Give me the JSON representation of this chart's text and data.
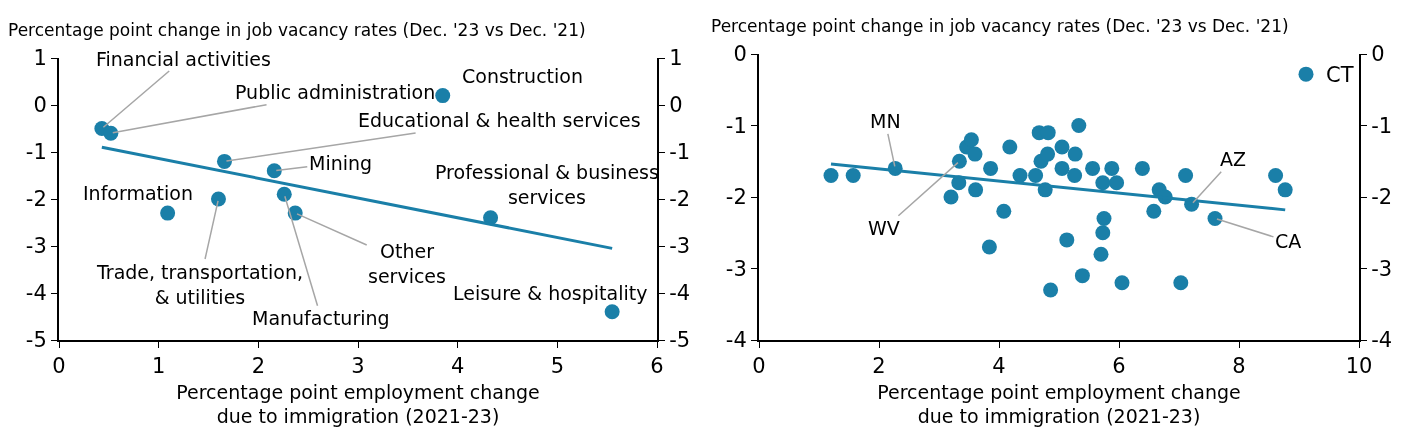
{
  "chart_data": [
    {
      "type": "scatter",
      "ylabel": "Percentage point change in job vacancy rates (Dec. '23 vs Dec. '21)",
      "xlabel": "Percentage point employment change\ndue to immigration (2021-23)",
      "xlim": [
        0,
        6
      ],
      "xticks": [
        0,
        1,
        2,
        3,
        4,
        5,
        6
      ],
      "ylim": [
        -5,
        1
      ],
      "yticks": [
        -5,
        -4,
        -3,
        -2,
        -1,
        0,
        1
      ],
      "y2lim": [
        -5,
        1
      ],
      "y2ticks": [
        -5,
        -4,
        -3,
        -2,
        -1,
        0,
        1
      ],
      "grid": false,
      "legend": false,
      "series": [
        {
          "marker": "circle",
          "color": "#1a7fa8",
          "x": [
            0.43,
            0.52,
            3.85,
            1.66,
            2.16,
            2.26,
            2.37,
            1.09,
            1.6,
            4.33,
            5.55
          ],
          "values": [
            -0.5,
            -0.6,
            0.2,
            -1.2,
            -1.4,
            -1.9,
            -2.3,
            -2.3,
            -2.0,
            -2.4,
            -4.4
          ]
        },
        {
          "type": "line",
          "marker": "none",
          "color": "#1a7fa8",
          "x": [
            0.43,
            5.55
          ],
          "values": [
            -0.9,
            -3.05
          ]
        }
      ],
      "annotations": [
        {
          "text": "Financial activities",
          "x": 0.43,
          "y": -0.5
        },
        {
          "text": "Public administration",
          "x": 0.52,
          "y": -0.6
        },
        {
          "text": "Construction",
          "x": 3.85,
          "y": 0.2
        },
        {
          "text": "Educational & health services",
          "x": 1.66,
          "y": -1.2
        },
        {
          "text": "Mining",
          "x": 2.16,
          "y": -1.4
        },
        {
          "text": "Manufacturing",
          "x": 2.26,
          "y": -1.9
        },
        {
          "text": "Other\nservices",
          "x": 2.37,
          "y": -2.3
        },
        {
          "text": "Information",
          "x": 1.09,
          "y": -2.3
        },
        {
          "text": "Trade, transportation,\n& utilities",
          "x": 1.6,
          "y": -2.0
        },
        {
          "text": "Professional & business\nservices",
          "x": 4.33,
          "y": -2.4
        },
        {
          "text": "Leisure & hospitality",
          "x": 5.55,
          "y": -4.4
        }
      ]
    },
    {
      "type": "scatter",
      "ylabel": "Percentage point change in job vacancy rates (Dec. '23 vs Dec. '21)",
      "xlabel": "Percentage point employment change\ndue to immigration (2021-23)",
      "xlim": [
        0,
        10
      ],
      "xticks": [
        0,
        2,
        4,
        6,
        8,
        10
      ],
      "ylim": [
        -4,
        0
      ],
      "yticks": [
        -4,
        -3,
        -2,
        -1,
        0
      ],
      "y2lim": [
        -4,
        0
      ],
      "y2ticks": [
        -4,
        -3,
        -2,
        -1,
        0
      ],
      "grid": false,
      "legend": "top right",
      "series": [
        {
          "name": "CT",
          "marker": "circle",
          "color": "#1a7fa8",
          "x": [
            1.2,
            1.57,
            2.27,
            3.2,
            3.34,
            3.33,
            3.46,
            3.54,
            3.6,
            3.61,
            3.86,
            3.84,
            4.08,
            4.18,
            4.35,
            4.61,
            4.67,
            4.82,
            4.7,
            4.81,
            4.77,
            4.86,
            5.05,
            5.05,
            5.13,
            5.27,
            5.26,
            5.33,
            5.39,
            5.56,
            5.73,
            5.75,
            5.73,
            5.7,
            5.88,
            5.96,
            6.05,
            6.39,
            6.58,
            6.67,
            6.77,
            7.03,
            7.11,
            7.21,
            7.6,
            8.61,
            8.77
          ],
          "values": [
            -1.7,
            -1.7,
            -1.6,
            -2.0,
            -1.5,
            -1.8,
            -1.3,
            -1.2,
            -1.4,
            -1.9,
            -1.6,
            -2.7,
            -2.2,
            -1.3,
            -1.7,
            -1.7,
            -1.1,
            -1.1,
            -1.5,
            -1.4,
            -1.9,
            -3.3,
            -1.3,
            -1.6,
            -2.6,
            -1.4,
            -1.7,
            -1.0,
            -3.1,
            -1.6,
            -1.8,
            -2.3,
            -2.5,
            -2.8,
            -1.6,
            -1.8,
            -3.2,
            -1.6,
            -2.2,
            -1.9,
            -2.0,
            -3.2,
            -1.7,
            -2.1,
            -2.3,
            -1.7,
            -1.9
          ]
        },
        {
          "type": "line",
          "marker": "none",
          "color": "#1a7fa8",
          "x": [
            1.2,
            8.77
          ],
          "values": [
            -1.54,
            -2.18
          ]
        }
      ],
      "annotations": [
        {
          "text": "MN",
          "x": 2.27,
          "y": -1.6
        },
        {
          "text": "WV",
          "x": 3.34,
          "y": -1.5
        },
        {
          "text": "AZ",
          "x": 7.21,
          "y": -2.1
        },
        {
          "text": "CA",
          "x": 7.6,
          "y": -2.3
        }
      ]
    }
  ]
}
